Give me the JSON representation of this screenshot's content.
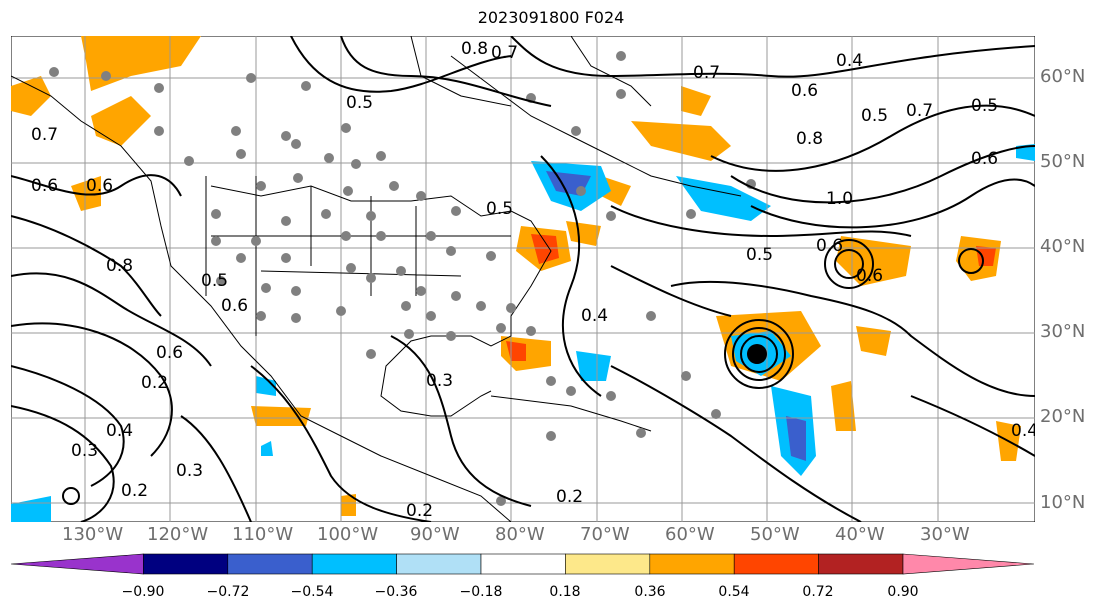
{
  "title": "2023091800 F024",
  "lat_labels": [
    "60°N",
    "50°N",
    "40°N",
    "30°N",
    "20°N",
    "10°N"
  ],
  "lon_labels": [
    "130°W",
    "120°W",
    "110°W",
    "100°W",
    "90°W",
    "80°W",
    "70°W",
    "60°W",
    "50°W",
    "40°W",
    "30°W"
  ],
  "colorbar": {
    "ticks": [
      "−0.90",
      "−0.72",
      "−0.54",
      "−0.36",
      "−0.18",
      "0.18",
      "0.36",
      "0.54",
      "0.72",
      "0.90"
    ],
    "colors": [
      "#9933cc",
      "#000080",
      "#3a5fcd",
      "#00bfff",
      "#b0e0f6",
      "#ffffff",
      "#fde88a",
      "#ffa500",
      "#ff4500",
      "#b22222",
      "#ff88aa"
    ]
  },
  "contour_labels": [
    "0.5",
    "0.7",
    "0.6",
    "0.8",
    "0.5",
    "0.7",
    "0.5",
    "0.6",
    "0.6",
    "1.0",
    "0.6",
    "0.6",
    "0.8",
    "0.6",
    "0.5",
    "0.4",
    "0.5",
    "0.6",
    "0.2",
    "0.4",
    "0.3",
    "0.3",
    "0.2",
    "0.3",
    "0.2",
    "0.7",
    "0.8",
    "0.4",
    "0.7",
    "0.6",
    "0.5",
    "0.2",
    "0.4"
  ],
  "map": {
    "extent_lon": [
      -140,
      -20
    ],
    "extent_lat": [
      7,
      64
    ]
  }
}
